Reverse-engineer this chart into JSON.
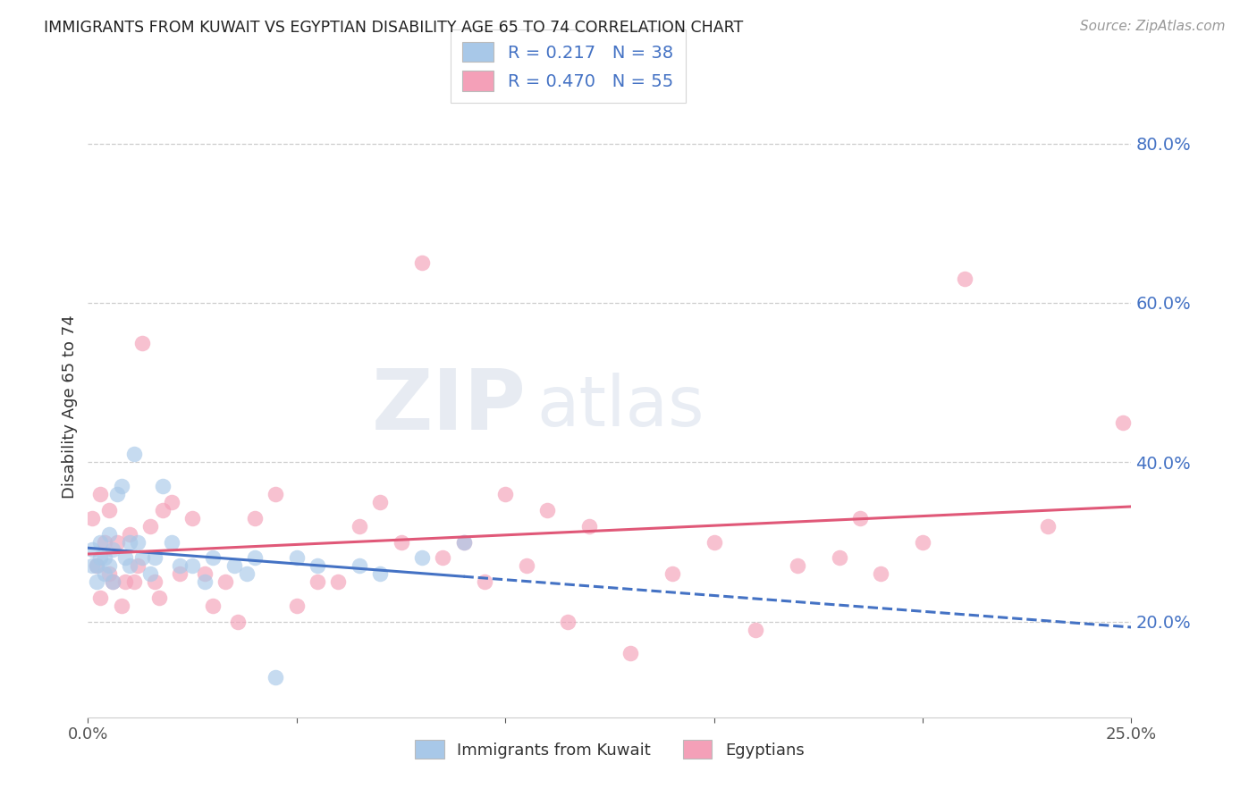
{
  "title": "IMMIGRANTS FROM KUWAIT VS EGYPTIAN DISABILITY AGE 65 TO 74 CORRELATION CHART",
  "source": "Source: ZipAtlas.com",
  "ylabel": "Disability Age 65 to 74",
  "legend_labels": [
    "Immigrants from Kuwait",
    "Egyptians"
  ],
  "R_kuwait": 0.217,
  "N_kuwait": 38,
  "R_egypt": 0.47,
  "N_egypt": 55,
  "color_kuwait": "#a8c8e8",
  "color_egypt": "#f4a0b8",
  "line_color_kuwait": "#4472c4",
  "line_color_egypt": "#e05878",
  "xlim": [
    0.0,
    0.25
  ],
  "ylim": [
    0.08,
    0.86
  ],
  "xticks": [
    0.0,
    0.05,
    0.1,
    0.15,
    0.2,
    0.25
  ],
  "yticks": [
    0.2,
    0.4,
    0.6,
    0.8
  ],
  "xticklabels": [
    "0.0%",
    "",
    "",
    "",
    "",
    "25.0%"
  ],
  "yticklabels": [
    "20.0%",
    "40.0%",
    "60.0%",
    "80.0%"
  ],
  "kuwait_x": [
    0.001,
    0.001,
    0.002,
    0.002,
    0.003,
    0.003,
    0.004,
    0.004,
    0.005,
    0.005,
    0.006,
    0.006,
    0.007,
    0.008,
    0.009,
    0.01,
    0.01,
    0.011,
    0.012,
    0.013,
    0.015,
    0.016,
    0.018,
    0.02,
    0.022,
    0.025,
    0.028,
    0.03,
    0.035,
    0.038,
    0.04,
    0.045,
    0.05,
    0.055,
    0.065,
    0.07,
    0.08,
    0.09
  ],
  "kuwait_y": [
    0.27,
    0.29,
    0.25,
    0.27,
    0.28,
    0.3,
    0.26,
    0.28,
    0.27,
    0.31,
    0.25,
    0.29,
    0.36,
    0.37,
    0.28,
    0.27,
    0.3,
    0.41,
    0.3,
    0.28,
    0.26,
    0.28,
    0.37,
    0.3,
    0.27,
    0.27,
    0.25,
    0.28,
    0.27,
    0.26,
    0.28,
    0.13,
    0.28,
    0.27,
    0.27,
    0.26,
    0.28,
    0.3
  ],
  "egypt_x": [
    0.001,
    0.002,
    0.003,
    0.003,
    0.004,
    0.005,
    0.005,
    0.006,
    0.007,
    0.008,
    0.009,
    0.01,
    0.011,
    0.012,
    0.013,
    0.015,
    0.016,
    0.017,
    0.018,
    0.02,
    0.022,
    0.025,
    0.028,
    0.03,
    0.033,
    0.036,
    0.04,
    0.045,
    0.05,
    0.055,
    0.06,
    0.065,
    0.07,
    0.075,
    0.08,
    0.085,
    0.09,
    0.095,
    0.1,
    0.105,
    0.11,
    0.115,
    0.12,
    0.13,
    0.14,
    0.15,
    0.16,
    0.17,
    0.18,
    0.185,
    0.19,
    0.2,
    0.21,
    0.23,
    0.248
  ],
  "egypt_y": [
    0.33,
    0.27,
    0.36,
    0.23,
    0.3,
    0.26,
    0.34,
    0.25,
    0.3,
    0.22,
    0.25,
    0.31,
    0.25,
    0.27,
    0.55,
    0.32,
    0.25,
    0.23,
    0.34,
    0.35,
    0.26,
    0.33,
    0.26,
    0.22,
    0.25,
    0.2,
    0.33,
    0.36,
    0.22,
    0.25,
    0.25,
    0.32,
    0.35,
    0.3,
    0.65,
    0.28,
    0.3,
    0.25,
    0.36,
    0.27,
    0.34,
    0.2,
    0.32,
    0.16,
    0.26,
    0.3,
    0.19,
    0.27,
    0.28,
    0.33,
    0.26,
    0.3,
    0.63,
    0.32,
    0.45
  ]
}
